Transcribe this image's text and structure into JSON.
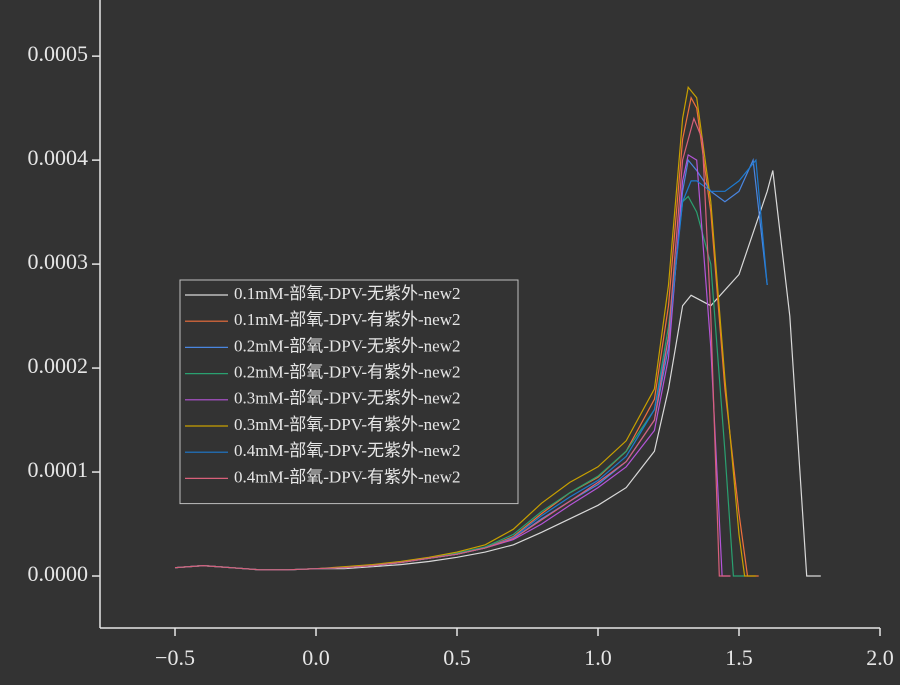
{
  "chart_data": {
    "type": "line",
    "xlim": [
      -0.766,
      2.0
    ],
    "ylim": [
      -5e-05,
      0.000554
    ],
    "xticks": [
      {
        "value": -0.5,
        "label": "−0.5"
      },
      {
        "value": 0,
        "label": "0.0"
      },
      0.5,
      {
        "value": 1,
        "label": "1.0"
      },
      1.5,
      {
        "value": 2,
        "label": "2.0"
      }
    ],
    "yticks": [
      {
        "value": 0,
        "label": "0.0000"
      },
      {
        "value": 0.0001,
        "label": "0.0001"
      },
      {
        "value": 0.0002,
        "label": "0.0002"
      },
      {
        "value": 0.0003,
        "label": "0.0003"
      },
      {
        "value": 0.0004,
        "label": "0.0004"
      },
      {
        "value": 0.0005,
        "label": "0.0005"
      }
    ],
    "series": [
      {
        "name": "0.1mM-部氧-DPV-无紫外-new2",
        "color": "#d9d9d9",
        "x": [
          -0.5,
          -0.4,
          -0.3,
          -0.2,
          -0.1,
          0,
          0.1,
          0.2,
          0.3,
          0.4,
          0.5,
          0.6,
          0.7,
          0.8,
          0.9,
          1.0,
          1.1,
          1.2,
          1.25,
          1.3,
          1.33,
          1.4,
          1.5,
          1.6,
          1.62,
          1.68,
          1.74,
          1.79
        ],
        "values": [
          8e-06,
          1e-05,
          8e-06,
          6e-06,
          6e-06,
          7e-06,
          7e-06,
          9e-06,
          1.1e-05,
          1.4e-05,
          1.8e-05,
          2.3e-05,
          3e-05,
          4.2e-05,
          5.5e-05,
          6.8e-05,
          8.5e-05,
          0.00012,
          0.00018,
          0.00026,
          0.00027,
          0.00026,
          0.00029,
          0.00037,
          0.00039,
          0.00025,
          0,
          0
        ]
      },
      {
        "name": "0.1mM-部氧-DPV-有紫外-new2",
        "color": "#f0703c",
        "x": [
          -0.5,
          -0.4,
          -0.3,
          -0.2,
          -0.1,
          0,
          0.1,
          0.2,
          0.3,
          0.4,
          0.5,
          0.6,
          0.7,
          0.8,
          0.9,
          1.0,
          1.1,
          1.2,
          1.25,
          1.3,
          1.33,
          1.35,
          1.4,
          1.45,
          1.5,
          1.53,
          1.57
        ],
        "values": [
          8e-06,
          1e-05,
          8e-06,
          6e-06,
          6e-06,
          7e-06,
          8e-06,
          1e-05,
          1.3e-05,
          1.7e-05,
          2.1e-05,
          2.7e-05,
          3.8e-05,
          6e-05,
          8e-05,
          9.5e-05,
          0.00012,
          0.00017,
          0.00026,
          0.00042,
          0.00046,
          0.00045,
          0.00035,
          0.00018,
          6e-05,
          0,
          0
        ]
      },
      {
        "name": "0.2mM-部氧-DPV-无紫外-new2",
        "color": "#4a86e0",
        "x": [
          -0.5,
          -0.4,
          -0.3,
          -0.2,
          -0.1,
          0,
          0.1,
          0.2,
          0.3,
          0.4,
          0.5,
          0.6,
          0.7,
          0.8,
          0.9,
          1.0,
          1.1,
          1.2,
          1.25,
          1.3,
          1.32,
          1.35,
          1.4,
          1.45,
          1.5,
          1.55,
          1.6
        ],
        "values": [
          8e-06,
          1e-05,
          8e-06,
          6e-06,
          6e-06,
          7e-06,
          8e-06,
          1e-05,
          1.3e-05,
          1.7e-05,
          2.1e-05,
          2.7e-05,
          3.6e-05,
          5.5e-05,
          7.2e-05,
          8.8e-05,
          0.00011,
          0.00015,
          0.00022,
          0.00037,
          0.0004,
          0.00039,
          0.00037,
          0.00036,
          0.00037,
          0.0004,
          0.00028
        ]
      },
      {
        "name": "0.2mM-部氧-DPV-有紫外-new2",
        "color": "#2aa070",
        "x": [
          -0.5,
          -0.4,
          -0.3,
          -0.2,
          -0.1,
          0,
          0.1,
          0.2,
          0.3,
          0.4,
          0.5,
          0.6,
          0.7,
          0.8,
          0.9,
          1.0,
          1.1,
          1.2,
          1.25,
          1.3,
          1.32,
          1.35,
          1.4,
          1.45,
          1.48,
          1.52
        ],
        "values": [
          8e-06,
          1e-05,
          8e-06,
          6e-06,
          6e-06,
          7e-06,
          8e-06,
          1e-05,
          1.3e-05,
          1.7e-05,
          2.2e-05,
          2.8e-05,
          4e-05,
          6.2e-05,
          8e-05,
          9.6e-05,
          0.00012,
          0.00016,
          0.00024,
          0.00036,
          0.000365,
          0.00035,
          0.0003,
          0.00012,
          0,
          0
        ]
      },
      {
        "name": "0.3mM-部氧-DPV-无紫外-new2",
        "color": "#b455d8",
        "x": [
          -0.5,
          -0.4,
          -0.3,
          -0.2,
          -0.1,
          0,
          0.1,
          0.2,
          0.3,
          0.4,
          0.5,
          0.6,
          0.7,
          0.8,
          0.9,
          1.0,
          1.1,
          1.2,
          1.25,
          1.3,
          1.32,
          1.35,
          1.4,
          1.44,
          1.47
        ],
        "values": [
          8e-06,
          1e-05,
          8e-06,
          6e-06,
          6e-06,
          7e-06,
          8e-06,
          1e-05,
          1.3e-05,
          1.7e-05,
          2.1e-05,
          2.7e-05,
          3.5e-05,
          5e-05,
          6.8e-05,
          8.5e-05,
          0.000105,
          0.00014,
          0.00021,
          0.00038,
          0.000405,
          0.0004,
          0.00022,
          0,
          0
        ]
      },
      {
        "name": "0.3mM-部氧-DPV-有紫外-new2",
        "color": "#c8a000",
        "x": [
          -0.5,
          -0.4,
          -0.3,
          -0.2,
          -0.1,
          0,
          0.1,
          0.2,
          0.3,
          0.4,
          0.5,
          0.6,
          0.7,
          0.8,
          0.9,
          1.0,
          1.1,
          1.2,
          1.25,
          1.3,
          1.32,
          1.35,
          1.4,
          1.45,
          1.5,
          1.52,
          1.56
        ],
        "values": [
          8e-06,
          1e-05,
          8e-06,
          6e-06,
          6e-06,
          7e-06,
          9e-06,
          1.1e-05,
          1.4e-05,
          1.8e-05,
          2.3e-05,
          3e-05,
          4.5e-05,
          7e-05,
          9e-05,
          0.000105,
          0.00013,
          0.00018,
          0.00028,
          0.00044,
          0.00047,
          0.00046,
          0.00036,
          0.00019,
          4e-05,
          0,
          0
        ]
      },
      {
        "name": "0.4mM-部氧-DPV-无紫外-new2",
        "color": "#1e7ad0",
        "x": [
          -0.5,
          -0.4,
          -0.3,
          -0.2,
          -0.1,
          0,
          0.1,
          0.2,
          0.3,
          0.4,
          0.5,
          0.6,
          0.7,
          0.8,
          0.9,
          1.0,
          1.1,
          1.2,
          1.25,
          1.3,
          1.33,
          1.35,
          1.4,
          1.45,
          1.5,
          1.56,
          1.6
        ],
        "values": [
          8e-06,
          1e-05,
          8e-06,
          6e-06,
          6e-06,
          7e-06,
          8e-06,
          1e-05,
          1.3e-05,
          1.7e-05,
          2.1e-05,
          2.7e-05,
          3.7e-05,
          5.8e-05,
          7.6e-05,
          9.2e-05,
          0.000115,
          0.00016,
          0.00023,
          0.00036,
          0.00038,
          0.00038,
          0.00037,
          0.00037,
          0.00038,
          0.0004,
          0.00028
        ]
      },
      {
        "name": "0.4mM-部氧-DPV-有紫外-new2",
        "color": "#d8607a",
        "x": [
          -0.5,
          -0.4,
          -0.3,
          -0.2,
          -0.1,
          0,
          0.1,
          0.2,
          0.3,
          0.4,
          0.5,
          0.6,
          0.7,
          0.8,
          0.9,
          1.0,
          1.1,
          1.2,
          1.25,
          1.3,
          1.34,
          1.37,
          1.4,
          1.43,
          1.47
        ],
        "values": [
          8e-06,
          1e-05,
          8e-06,
          6e-06,
          6e-06,
          7e-06,
          8e-06,
          1e-05,
          1.3e-05,
          1.7e-05,
          2.1e-05,
          2.7e-05,
          3.6e-05,
          5.4e-05,
          7.2e-05,
          9e-05,
          0.00011,
          0.00015,
          0.00023,
          0.0004,
          0.00044,
          0.00042,
          0.00025,
          0,
          0
        ]
      }
    ]
  }
}
